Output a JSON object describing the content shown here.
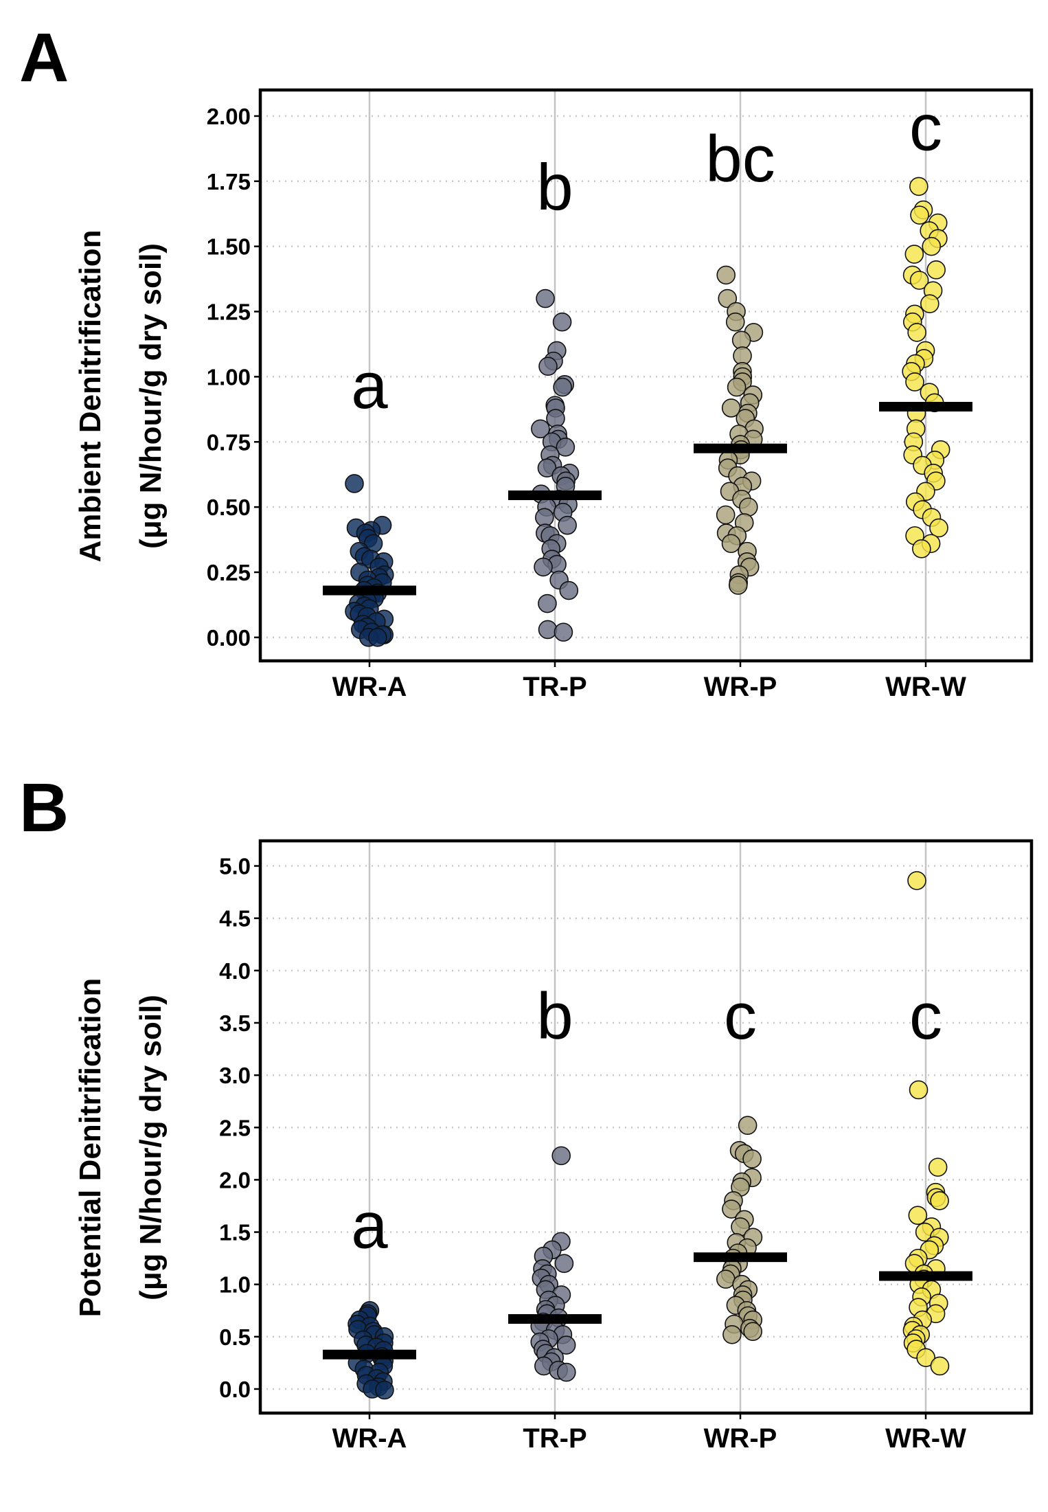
{
  "chart_data": [
    {
      "type": "scatter",
      "panel_label": "A",
      "title": "",
      "ylabel_line1": "Ambient Denitrification",
      "ylabel_line2": "(μg N/hour/g dry soil)",
      "xlabel": "",
      "ylim": [
        -0.09,
        2.1
      ],
      "yticks": [
        0.0,
        0.25,
        0.5,
        0.75,
        1.0,
        1.25,
        1.5,
        1.75,
        2.0
      ],
      "ytick_labels": [
        "0.00",
        "0.25",
        "0.50",
        "0.75",
        "1.00",
        "1.25",
        "1.50",
        "1.75",
        "2.00"
      ],
      "grid": "on",
      "categories": [
        "WR-A",
        "TR-P",
        "WR-P",
        "WR-W"
      ],
      "colors": [
        "#0f2d5c",
        "#6a6f82",
        "#aaa27c",
        "#f5e44c"
      ],
      "means": [
        0.18,
        0.545,
        0.725,
        0.885
      ],
      "significance": [
        {
          "label": "a",
          "y": 0.88
        },
        {
          "label": "b",
          "y": 1.64
        },
        {
          "label": "bc",
          "y": 1.75
        },
        {
          "label": "c",
          "y": 1.87
        }
      ],
      "series": [
        {
          "name": "WR-A",
          "values": [
            0.59,
            0.43,
            0.42,
            0.41,
            0.4,
            0.38,
            0.36,
            0.33,
            0.31,
            0.3,
            0.29,
            0.27,
            0.25,
            0.24,
            0.23,
            0.22,
            0.21,
            0.2,
            0.19,
            0.18,
            0.17,
            0.16,
            0.15,
            0.14,
            0.13,
            0.12,
            0.11,
            0.1,
            0.09,
            0.08,
            0.07,
            0.06,
            0.05,
            0.04,
            0.03,
            0.02,
            0.01,
            0.01,
            0.0,
            0.0
          ]
        },
        {
          "name": "TR-P",
          "values": [
            1.3,
            1.21,
            1.1,
            1.06,
            1.04,
            0.97,
            0.96,
            0.89,
            0.88,
            0.84,
            0.8,
            0.78,
            0.76,
            0.75,
            0.73,
            0.7,
            0.66,
            0.65,
            0.63,
            0.62,
            0.6,
            0.58,
            0.55,
            0.53,
            0.51,
            0.5,
            0.48,
            0.46,
            0.43,
            0.4,
            0.39,
            0.36,
            0.34,
            0.3,
            0.28,
            0.27,
            0.22,
            0.18,
            0.13,
            0.03,
            0.02
          ]
        },
        {
          "name": "WR-P",
          "values": [
            1.39,
            1.3,
            1.25,
            1.21,
            1.17,
            1.14,
            1.08,
            1.02,
            1.0,
            0.98,
            0.96,
            0.93,
            0.9,
            0.88,
            0.86,
            0.84,
            0.8,
            0.78,
            0.76,
            0.74,
            0.72,
            0.7,
            0.68,
            0.65,
            0.62,
            0.6,
            0.58,
            0.56,
            0.53,
            0.5,
            0.47,
            0.44,
            0.4,
            0.39,
            0.36,
            0.33,
            0.29,
            0.27,
            0.24,
            0.21,
            0.2
          ]
        },
        {
          "name": "WR-W",
          "values": [
            1.73,
            1.64,
            1.62,
            1.59,
            1.56,
            1.53,
            1.5,
            1.47,
            1.41,
            1.39,
            1.37,
            1.33,
            1.28,
            1.24,
            1.21,
            1.17,
            1.1,
            1.07,
            1.05,
            1.02,
            0.98,
            0.94,
            0.9,
            0.86,
            0.8,
            0.75,
            0.72,
            0.7,
            0.68,
            0.66,
            0.63,
            0.6,
            0.56,
            0.52,
            0.49,
            0.46,
            0.42,
            0.39,
            0.36,
            0.34
          ]
        }
      ]
    },
    {
      "type": "scatter",
      "panel_label": "B",
      "title": "",
      "ylabel_line1": "Potential Denitrification",
      "ylabel_line2": "(μg N/hour/g dry soil)",
      "xlabel": "",
      "ylim": [
        -0.23,
        5.24
      ],
      "yticks": [
        0.0,
        0.5,
        1.0,
        1.5,
        2.0,
        2.5,
        3.0,
        3.5,
        4.0,
        4.5,
        5.0
      ],
      "ytick_labels": [
        "0.0",
        "0.5",
        "1.0",
        "1.5",
        "2.0",
        "2.5",
        "3.0",
        "3.5",
        "4.0",
        "4.5",
        "5.0"
      ],
      "grid": "on",
      "categories": [
        "WR-A",
        "TR-P",
        "WR-P",
        "WR-W"
      ],
      "colors": [
        "#0f2d5c",
        "#6a6f82",
        "#aaa27c",
        "#f5e44c"
      ],
      "means": [
        0.33,
        0.67,
        1.26,
        1.08
      ],
      "significance": [
        {
          "label": "a",
          "y": 1.35
        },
        {
          "label": "b",
          "y": 3.35
        },
        {
          "label": "c",
          "y": 3.35
        },
        {
          "label": "c",
          "y": 3.35
        }
      ],
      "series": [
        {
          "name": "WR-A",
          "values": [
            0.75,
            0.72,
            0.7,
            0.66,
            0.62,
            0.6,
            0.57,
            0.55,
            0.52,
            0.5,
            0.47,
            0.44,
            0.42,
            0.4,
            0.37,
            0.34,
            0.31,
            0.29,
            0.27,
            0.25,
            0.22,
            0.19,
            0.16,
            0.13,
            0.1,
            0.07,
            0.05,
            0.02,
            0.0,
            -0.01
          ]
        },
        {
          "name": "TR-P",
          "values": [
            2.23,
            1.41,
            1.33,
            1.27,
            1.2,
            1.15,
            1.1,
            1.06,
            1.0,
            0.95,
            0.9,
            0.85,
            0.8,
            0.76,
            0.72,
            0.68,
            0.64,
            0.6,
            0.56,
            0.52,
            0.48,
            0.45,
            0.42,
            0.38,
            0.34,
            0.3,
            0.26,
            0.22,
            0.18,
            0.16
          ]
        },
        {
          "name": "WR-P",
          "values": [
            2.52,
            2.28,
            2.25,
            2.2,
            2.02,
            1.98,
            1.93,
            1.8,
            1.72,
            1.62,
            1.55,
            1.45,
            1.4,
            1.35,
            1.3,
            1.25,
            1.2,
            1.15,
            1.1,
            1.05,
            1.0,
            0.95,
            0.9,
            0.85,
            0.8,
            0.75,
            0.7,
            0.66,
            0.62,
            0.58,
            0.55,
            0.52
          ]
        },
        {
          "name": "WR-W",
          "values": [
            4.86,
            2.86,
            2.12,
            1.88,
            1.83,
            1.8,
            1.66,
            1.55,
            1.5,
            1.45,
            1.37,
            1.33,
            1.25,
            1.2,
            1.15,
            1.1,
            1.05,
            1.0,
            0.95,
            0.88,
            0.82,
            0.78,
            0.72,
            0.66,
            0.6,
            0.56,
            0.52,
            0.48,
            0.44,
            0.38,
            0.3,
            0.22
          ]
        }
      ]
    }
  ]
}
